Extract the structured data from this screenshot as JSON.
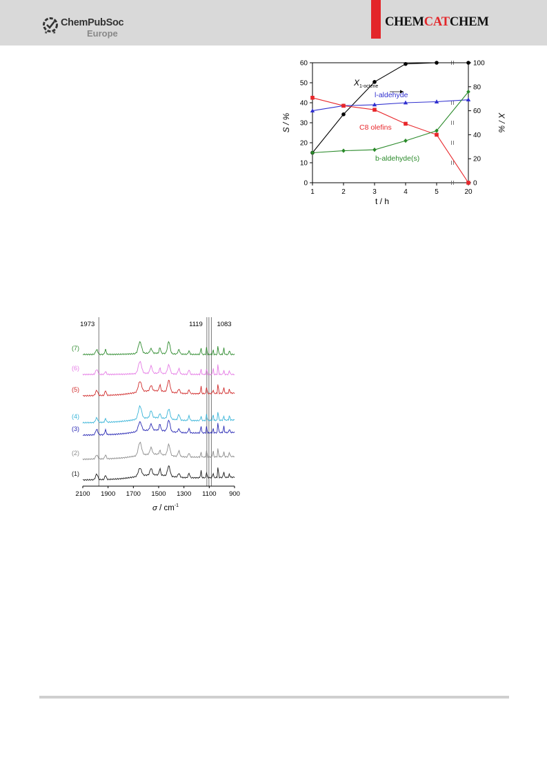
{
  "header": {
    "publisher_line1": "ChemPubSoc",
    "publisher_line2": "Europe",
    "journal_part1": "CHEM",
    "journal_part2": "CAT",
    "journal_part3": "CHEM",
    "accent_color": "#e3262a"
  },
  "chart_data": [
    {
      "type": "line",
      "xlabel": "t / h",
      "ylabel_left": "S / %",
      "ylabel_right": "X / %",
      "x_ticks": [
        "1",
        "2",
        "3",
        "4",
        "5",
        "20"
      ],
      "y_left_ticks": [
        "0",
        "10",
        "20",
        "30",
        "40",
        "50",
        "60"
      ],
      "y_right_ticks": [
        "0",
        "20",
        "40",
        "60",
        "80",
        "100"
      ],
      "ylim_left": [
        0,
        60
      ],
      "ylim_right": [
        0,
        100
      ],
      "axis_break": "between 5 and 20",
      "series": [
        {
          "name": "X1-octene",
          "axis": "right",
          "color": "#000000",
          "marker": "circle",
          "x": [
            1,
            2,
            3,
            4,
            5,
            20
          ],
          "y": [
            25,
            57,
            84,
            99,
            100,
            100
          ]
        },
        {
          "name": "l-aldehyde",
          "axis": "left",
          "color": "#2f2fcf",
          "marker": "triangle",
          "x": [
            1,
            2,
            3,
            4,
            5,
            20
          ],
          "y": [
            36,
            38.5,
            39,
            40,
            40.5,
            41.5
          ]
        },
        {
          "name": "C8 olefins",
          "axis": "left",
          "color": "#e8262a",
          "marker": "square",
          "x": [
            1,
            2,
            3,
            4,
            5,
            20
          ],
          "y": [
            42.5,
            38.5,
            36.5,
            29.5,
            24,
            0
          ]
        },
        {
          "name": "b-aldehyde(s)",
          "axis": "left",
          "color": "#2a8a2a",
          "marker": "diamond",
          "x": [
            1,
            2,
            3,
            4,
            5,
            20
          ],
          "y": [
            15,
            16,
            16.5,
            21,
            26,
            45.5
          ]
        }
      ],
      "annotations": [
        "X",
        "1-octene",
        "l-aldehyde",
        "C8 olefins",
        "b-aldehyde(s)"
      ]
    },
    {
      "type": "line",
      "xlabel_symbol": "σ",
      "xlabel_unit": " / cm",
      "xlabel_exp": "-1",
      "x_ticks": [
        "2100",
        "1900",
        "1700",
        "1500",
        "1300",
        "1100",
        "900"
      ],
      "xlim": [
        2100,
        900
      ],
      "reference_lines": [
        "1973",
        "1119",
        "1083"
      ],
      "spectra": [
        {
          "name": "(7)",
          "color": "#2e8b2e"
        },
        {
          "name": "(6)",
          "color": "#e57be5"
        },
        {
          "name": "(5)",
          "color": "#d02a2a"
        },
        {
          "name": "(4)",
          "color": "#38b4d8"
        },
        {
          "name": "(3)",
          "color": "#2828b4"
        },
        {
          "name": "(2)",
          "color": "#8c8c8c"
        },
        {
          "name": "(1)",
          "color": "#1a1a1a"
        }
      ]
    }
  ]
}
